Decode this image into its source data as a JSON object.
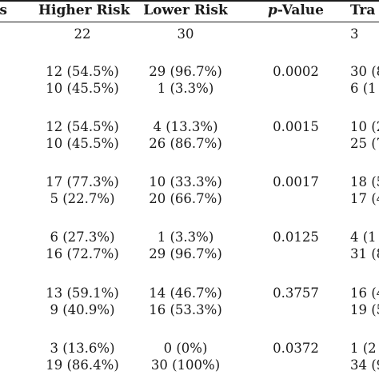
{
  "headers": {
    "first": "s",
    "higher": "Higher Risk",
    "lower": "Lower Risk",
    "p_italic": "p",
    "p_rest": "-Value",
    "tra": "Tra"
  },
  "counts": {
    "higher": "22",
    "lower": "30",
    "tra": "3"
  },
  "groups": [
    {
      "rows": [
        {
          "higher": "12 (54.5%)",
          "lower": "29 (96.7%)",
          "p": "0.0002",
          "tra": "30 (8"
        },
        {
          "higher": "10 (45.5%)",
          "lower": "1 (3.3%)",
          "p": "",
          "tra": "6 (1"
        }
      ]
    },
    {
      "rows": [
        {
          "higher": "12 (54.5%)",
          "lower": "4 (13.3%)",
          "p": "0.0015",
          "tra": "10 (2"
        },
        {
          "higher": "10 (45.5%)",
          "lower": "26 (86.7%)",
          "p": "",
          "tra": "25 (7"
        }
      ]
    },
    {
      "rows": [
        {
          "higher": "17 (77.3%)",
          "lower": "10 (33.3%)",
          "p": "0.0017",
          "tra": "18 (5"
        },
        {
          "higher": "5 (22.7%)",
          "lower": "20 (66.7%)",
          "p": "",
          "tra": "17 (4"
        }
      ]
    },
    {
      "rows": [
        {
          "higher": "6 (27.3%)",
          "lower": "1 (3.3%)",
          "p": "0.0125",
          "tra": "4 (1"
        },
        {
          "higher": "16 (72.7%)",
          "lower": "29 (96.7%)",
          "p": "",
          "tra": "31 (8"
        }
      ]
    },
    {
      "rows": [
        {
          "higher": "13 (59.1%)",
          "lower": "14 (46.7%)",
          "p": "0.3757",
          "tra": "16 (4"
        },
        {
          "higher": "9 (40.9%)",
          "lower": "16 (53.3%)",
          "p": "",
          "tra": "19 (5"
        }
      ]
    },
    {
      "rows": [
        {
          "higher": "3 (13.6%)",
          "lower": "0 (0%)",
          "p": "0.0372",
          "tra": "1 (2"
        },
        {
          "higher": "19 (86.4%)",
          "lower": "30 (100%)",
          "p": "",
          "tra": "34 (9"
        }
      ]
    }
  ]
}
